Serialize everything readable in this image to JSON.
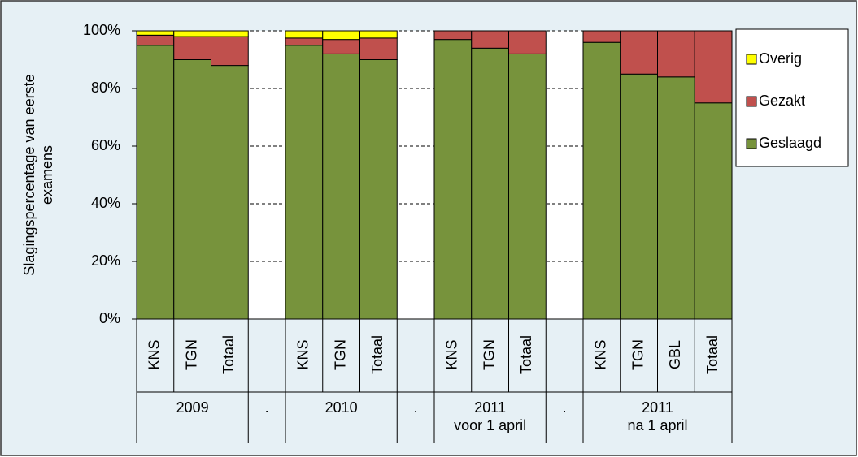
{
  "chart_data": {
    "type": "stacked_bar",
    "y_label": [
      "Slagingspercentage van eerste",
      "examens"
    ],
    "categories": [
      "KNS",
      "TGN",
      "Totaal",
      null,
      "KNS",
      "TGN",
      "Totaal",
      null,
      "KNS",
      "TGN",
      "Totaal",
      null,
      "KNS",
      "TGN",
      "GBL",
      "Totaal"
    ],
    "group_labels": [
      [
        "2009"
      ],
      [
        "."
      ],
      [
        "2010"
      ],
      [
        "."
      ],
      [
        "2011",
        "voor 1 april"
      ],
      [
        "."
      ],
      [
        "2011",
        "na 1 april"
      ]
    ],
    "group_sizes": [
      3,
      1,
      3,
      1,
      3,
      1,
      4
    ],
    "series": [
      {
        "name": "Geslaagd",
        "color": "#77933c",
        "values": [
          95,
          90,
          88,
          null,
          95,
          92,
          90,
          null,
          97,
          94,
          92,
          null,
          96,
          85,
          84,
          75
        ]
      },
      {
        "name": "Gezakt",
        "color": "#c0504d",
        "values": [
          3.5,
          8,
          10,
          null,
          2.5,
          5,
          7.5,
          null,
          3,
          6,
          8,
          null,
          4,
          15,
          16,
          25
        ]
      },
      {
        "name": "Overig",
        "color": "#ffff00",
        "values": [
          1.5,
          2,
          2,
          null,
          2.5,
          3,
          2.5,
          null,
          0,
          0,
          0,
          null,
          0,
          0,
          0,
          0
        ]
      }
    ],
    "ylim": [
      0,
      100
    ],
    "yticks": [
      {
        "value": 0,
        "label": "0%"
      },
      {
        "value": 20,
        "label": "20%"
      },
      {
        "value": 40,
        "label": "40%"
      },
      {
        "value": 60,
        "label": "60%"
      },
      {
        "value": 80,
        "label": "80%"
      },
      {
        "value": 100,
        "label": "100%"
      }
    ],
    "grid": true,
    "legend": "right"
  }
}
